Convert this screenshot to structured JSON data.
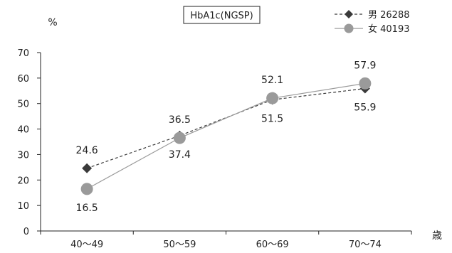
{
  "chart_data": {
    "type": "line",
    "title": "HbA1c(NGSP)",
    "ylabel": "%",
    "xlabel": "歳",
    "categories": [
      "40〜49",
      "50〜59",
      "60〜69",
      "70〜74"
    ],
    "ylim": [
      0,
      70
    ],
    "yticks": [
      0,
      10,
      20,
      30,
      40,
      50,
      60,
      70
    ],
    "grid": false,
    "legend_position": "top-right",
    "series": [
      {
        "name": "男 26288",
        "values": [
          24.6,
          37.4,
          51.5,
          55.9
        ],
        "color": "#3a3a3a",
        "marker": "diamond",
        "line": "dashed"
      },
      {
        "name": "女 40193",
        "values": [
          16.5,
          36.5,
          52.1,
          57.9
        ],
        "color": "#9a9a9a",
        "marker": "circle",
        "line": "solid"
      }
    ],
    "data_labels": [
      {
        "text": "24.6",
        "series": 0,
        "index": 0,
        "side": "above"
      },
      {
        "text": "37.4",
        "series": 0,
        "index": 1,
        "side": "below"
      },
      {
        "text": "51.5",
        "series": 0,
        "index": 2,
        "side": "below"
      },
      {
        "text": "55.9",
        "series": 0,
        "index": 3,
        "side": "below"
      },
      {
        "text": "16.5",
        "series": 1,
        "index": 0,
        "side": "below"
      },
      {
        "text": "36.5",
        "series": 1,
        "index": 1,
        "side": "above"
      },
      {
        "text": "52.1",
        "series": 1,
        "index": 2,
        "side": "above"
      },
      {
        "text": "57.9",
        "series": 1,
        "index": 3,
        "side": "above"
      }
    ]
  }
}
